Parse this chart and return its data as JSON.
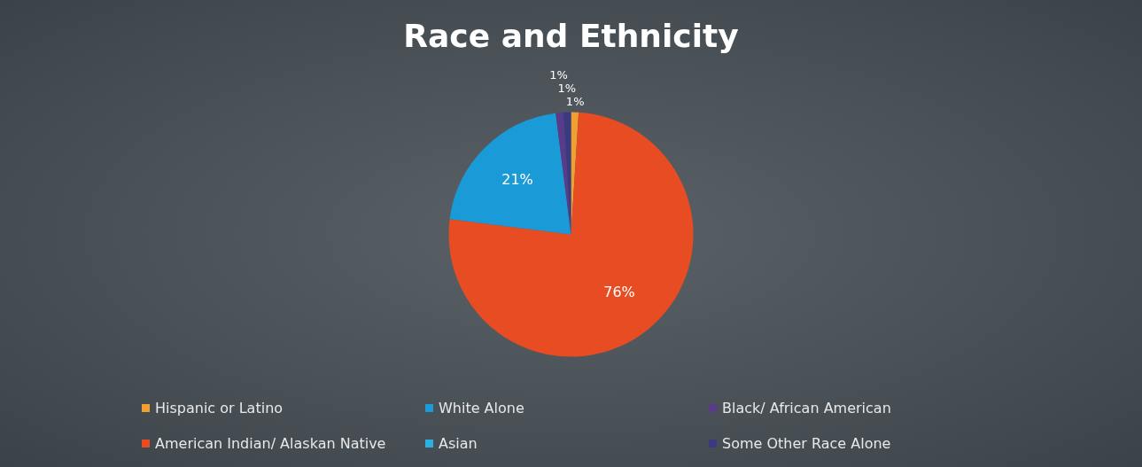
{
  "chart_data": {
    "type": "pie",
    "title": "Race and Ethnicity",
    "categories": [
      "Hispanic or Latino",
      "American Indian/ Alaskan Native",
      "White Alone",
      "Asian",
      "Black/ African American",
      "Some Other Race Alone"
    ],
    "values": [
      1,
      76,
      21,
      0,
      1,
      1
    ],
    "colors": [
      "#f0a030",
      "#e84c22",
      "#1a9ad6",
      "#2ab0e0",
      "#5a3a8a",
      "#3a3a80"
    ],
    "value_labels": [
      "1%",
      "76%",
      "21%",
      null,
      "1%",
      "1%"
    ],
    "legend": "bottom"
  }
}
